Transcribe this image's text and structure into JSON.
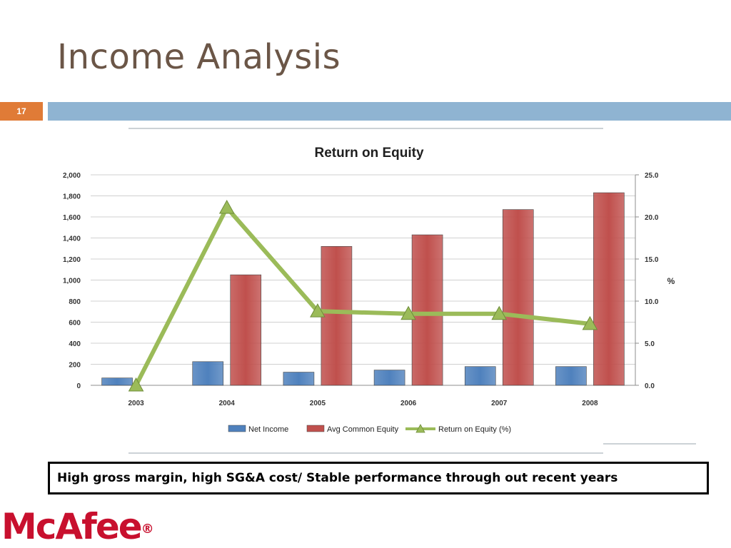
{
  "slide": {
    "title": "Income Analysis",
    "number": "17",
    "caption": "High gross margin, high SG&A cost/ Stable performance through out recent years",
    "logo": "McAfee",
    "logo_mark": "®"
  },
  "colors": {
    "title": "#6b5647",
    "number_box": "#e07b37",
    "band": "#8fb4d2",
    "net_income": "#4f81bd",
    "avg_equity": "#c0504d",
    "roe": "#9bbb59",
    "logo": "#c8102e"
  },
  "chart_data": {
    "type": "bar",
    "title": "Return on Equity",
    "categories": [
      "2003",
      "2004",
      "2005",
      "2006",
      "2007",
      "2008"
    ],
    "series": [
      {
        "name": "Net Income",
        "type": "bar",
        "axis": "left",
        "values": [
          70,
          225,
          125,
          145,
          178,
          178
        ]
      },
      {
        "name": "Avg Common Equity",
        "type": "bar",
        "axis": "left",
        "values": [
          null,
          1050,
          1320,
          1430,
          1670,
          1830
        ]
      },
      {
        "name": "Return on Equity (%)",
        "type": "line",
        "axis": "right",
        "values": [
          0.0,
          21.1,
          8.8,
          8.5,
          8.5,
          7.3
        ]
      }
    ],
    "y_left": {
      "min": 0,
      "max": 2000,
      "ticks": [
        "0",
        "200",
        "400",
        "600",
        "800",
        "1,000",
        "1,200",
        "1,400",
        "1,600",
        "1,800",
        "2,000"
      ]
    },
    "y_right": {
      "label": "%",
      "min": 0,
      "max": 25,
      "ticks": [
        "0.0",
        "5.0",
        "10.0",
        "15.0",
        "20.0",
        "25.0"
      ]
    },
    "grid": true,
    "legend_position": "bottom"
  }
}
